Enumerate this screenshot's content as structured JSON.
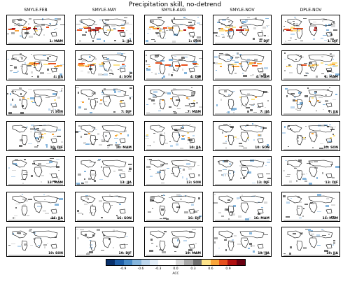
{
  "title": "Precipitation skill, no-detrend",
  "columns": [
    "SMYLE-FEB",
    "SMYLE-MAY",
    "SMYLE-AUG",
    "SMYLE-NOV",
    "DPLE-NOV"
  ],
  "panel_labels": [
    [
      "1: MAM",
      "1: JJA",
      "1: SON",
      "1: DJF",
      "1: DJF"
    ],
    [
      "4: JJA",
      "4: SON",
      "4: DJF",
      "4: MAM",
      "4: MAM"
    ],
    [
      "7: SON",
      "7: DJF",
      "7: MAM",
      "7: JJA",
      "7: JJA"
    ],
    [
      "10: DJF",
      "10: MAM",
      "10: JJA",
      "10: SON",
      "10: SON"
    ],
    [
      "13: MAM",
      "13: JJA",
      "13: SON",
      "13: DJF",
      "13: DJF"
    ],
    [
      "16: JJA",
      "16: SON",
      "16: DJF",
      "16: MAM",
      "16: MAM"
    ],
    [
      "19: SON",
      "19: DJF",
      "19: MAM",
      "19: JJA",
      "19: JJA"
    ]
  ],
  "colorbar": {
    "label": "ACC",
    "ticks": [
      "-0.9",
      "-0.6",
      "-0.3",
      "0.0",
      "0.3",
      "0.6",
      "0.9"
    ],
    "colors": [
      "#08306b",
      "#1f5fa8",
      "#4a8cc8",
      "#86b6dd",
      "#bdd7ee",
      "#e3eef8",
      "#ffffff",
      "#ffffff",
      "#d9d9d9",
      "#aaaaaa",
      "#707070",
      "#fde38a",
      "#f9a53a",
      "#e7501e",
      "#b01010",
      "#6a0011"
    ]
  }
}
